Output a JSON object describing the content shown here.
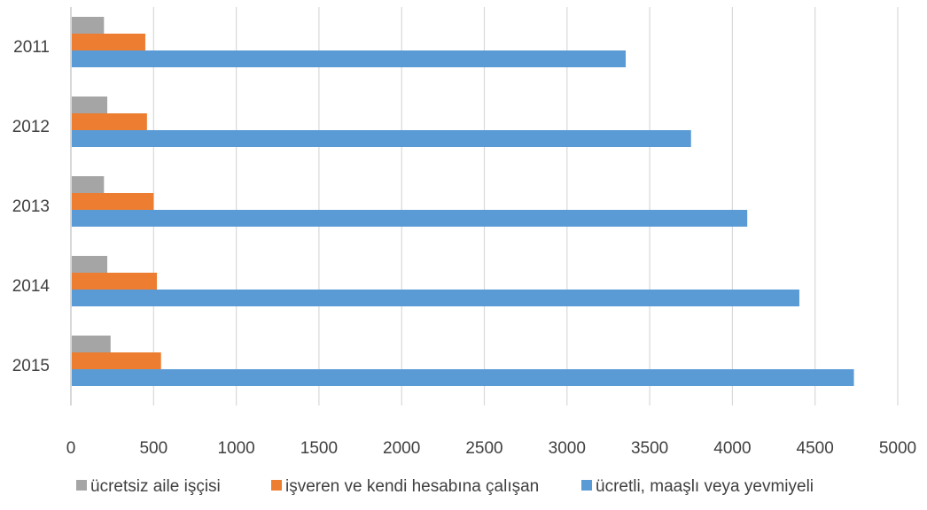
{
  "chart_data": {
    "type": "bar",
    "orientation": "horizontal",
    "categories": [
      "2011",
      "2012",
      "2013",
      "2014",
      "2015"
    ],
    "series": [
      {
        "name": "ücretsiz aile işçisi",
        "color": "#a5a5a5",
        "values": [
          200,
          220,
          200,
          220,
          240
        ]
      },
      {
        "name": "işveren ve kendi hesabına çalışan",
        "color": "#ed7d31",
        "values": [
          450,
          460,
          500,
          520,
          545
        ]
      },
      {
        "name": "ücretli, maaşlı veya yevmiyeli",
        "color": "#5b9bd5",
        "values": [
          3355,
          3750,
          4090,
          4405,
          4735
        ]
      }
    ],
    "xlim": [
      0,
      5000
    ],
    "xticks": [
      "0",
      "500",
      "1000",
      "1500",
      "2000",
      "2500",
      "3000",
      "3500",
      "4000",
      "4500",
      "5000"
    ],
    "grid": "vertical",
    "legend_position": "bottom",
    "gridline_color": "#d9d9d9",
    "axis_line_color": "#bfbfbf"
  }
}
